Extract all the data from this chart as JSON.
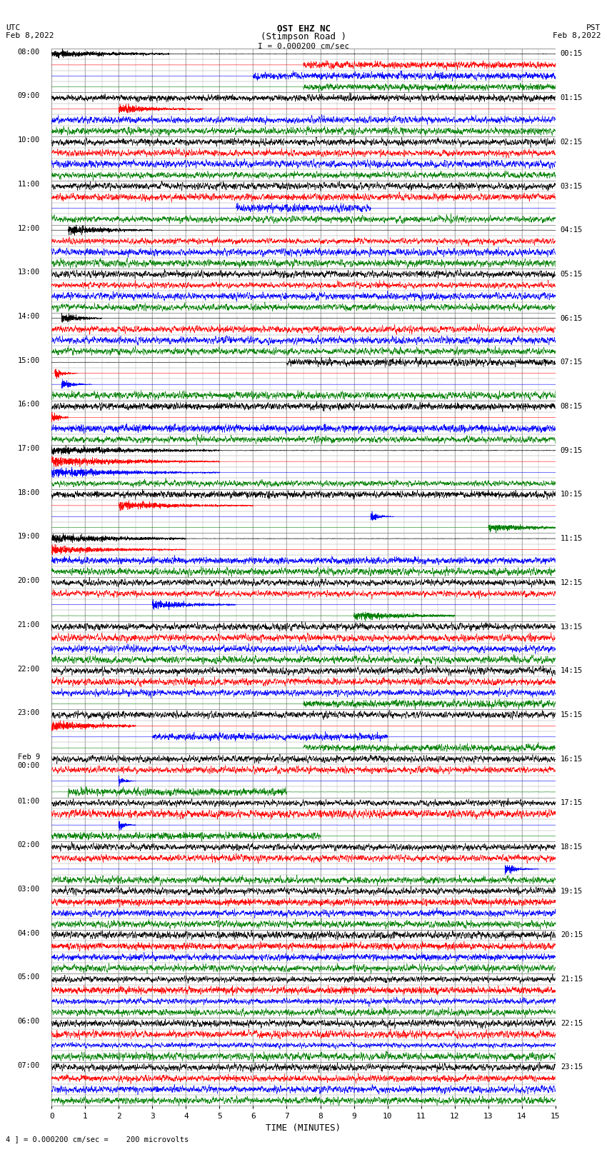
{
  "title_line1": "OST EHZ NC",
  "title_line2": "(Stimpson Road )",
  "title_line3": "I = 0.000200 cm/sec",
  "label_left_top1": "UTC",
  "label_left_top2": "Feb 8,2022",
  "label_right_top1": "PST",
  "label_right_top2": "Feb 8,2022",
  "xlabel": "TIME (MINUTES)",
  "footer": "4 ] = 0.000200 cm/sec =    200 microvolts",
  "utc_times": [
    "08:00",
    "09:00",
    "10:00",
    "11:00",
    "12:00",
    "13:00",
    "14:00",
    "15:00",
    "16:00",
    "17:00",
    "18:00",
    "19:00",
    "20:00",
    "21:00",
    "22:00",
    "23:00",
    "Feb 9\n00:00",
    "01:00",
    "02:00",
    "03:00",
    "04:00",
    "05:00",
    "06:00",
    "07:00"
  ],
  "pst_times": [
    "00:15",
    "01:15",
    "02:15",
    "03:15",
    "04:15",
    "05:15",
    "06:15",
    "07:15",
    "08:15",
    "09:15",
    "10:15",
    "11:15",
    "12:15",
    "13:15",
    "14:15",
    "15:15",
    "16:15",
    "17:15",
    "18:15",
    "19:15",
    "20:15",
    "21:15",
    "22:15",
    "23:15"
  ],
  "n_rows": 24,
  "n_traces_per_row": 4,
  "colors": [
    "black",
    "red",
    "blue",
    "green"
  ],
  "xmin": 0,
  "xmax": 15,
  "background": "white",
  "grid_color": "#999999",
  "seed": 42
}
